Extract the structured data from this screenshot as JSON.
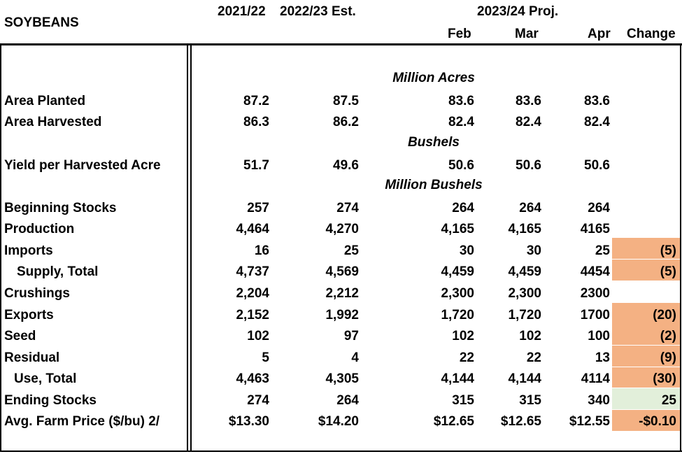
{
  "header": {
    "commodity": "SOYBEANS",
    "col1": "2021/22",
    "col2": "2022/23 Est.",
    "proj_group": "2023/24 Proj.",
    "feb": "Feb",
    "mar": "Mar",
    "apr": "Apr",
    "change": "Change"
  },
  "units": {
    "acres": "Million Acres",
    "bushels": "Bushels",
    "million_bushels": "Million Bushels"
  },
  "rows": [
    {
      "label": "Area Planted",
      "v2122": "87.2",
      "v2223": "87.5",
      "feb": "83.6",
      "mar": "83.6",
      "apr": "83.6",
      "change": ""
    },
    {
      "label": "Area Harvested",
      "v2122": "86.3",
      "v2223": "86.2",
      "feb": "82.4",
      "mar": "82.4",
      "apr": "82.4",
      "change": ""
    },
    {
      "label": "Yield per Harvested Acre",
      "v2122": "51.7",
      "v2223": "49.6",
      "feb": "50.6",
      "mar": "50.6",
      "apr": "50.6",
      "change": ""
    },
    {
      "label": "Beginning Stocks",
      "v2122": "257",
      "v2223": "274",
      "feb": "264",
      "mar": "264",
      "apr": "264",
      "change": ""
    },
    {
      "label": "Production",
      "v2122": "4,464",
      "v2223": "4,270",
      "feb": "4,165",
      "mar": "4,165",
      "apr": "4165",
      "change": ""
    },
    {
      "label": "Imports",
      "v2122": "16",
      "v2223": "25",
      "feb": "30",
      "mar": "30",
      "apr": "25",
      "change": "(5)"
    },
    {
      "label": "Supply, Total",
      "v2122": "4,737",
      "v2223": "4,569",
      "feb": "4,459",
      "mar": "4,459",
      "apr": "4454",
      "change": "(5)"
    },
    {
      "label": "Crushings",
      "v2122": "2,204",
      "v2223": "2,212",
      "feb": "2,300",
      "mar": "2,300",
      "apr": "2300",
      "change": ""
    },
    {
      "label": "Exports",
      "v2122": "2,152",
      "v2223": "1,992",
      "feb": "1,720",
      "mar": "1,720",
      "apr": "1700",
      "change": "(20)"
    },
    {
      "label": "Seed",
      "v2122": "102",
      "v2223": "97",
      "feb": "102",
      "mar": "102",
      "apr": "100",
      "change": "(2)"
    },
    {
      "label": "Residual",
      "v2122": "5",
      "v2223": "4",
      "feb": "22",
      "mar": "22",
      "apr": "13",
      "change": "(9)"
    },
    {
      "label": "Use, Total",
      "v2122": "4,463",
      "v2223": "4,305",
      "feb": "4,144",
      "mar": "4,144",
      "apr": "4114",
      "change": "(30)"
    },
    {
      "label": "Ending Stocks",
      "v2122": "274",
      "v2223": "264",
      "feb": "315",
      "mar": "315",
      "apr": "340",
      "change": "25"
    },
    {
      "label": "Avg. Farm Price ($/bu)  2/",
      "v2122": "$13.30",
      "v2223": "$14.20",
      "feb": "$12.65",
      "mar": "$12.65",
      "apr": "$12.55",
      "change": "-$0.10"
    }
  ],
  "colors": {
    "decrease": "#f4b183",
    "increase": "#e2efda"
  }
}
